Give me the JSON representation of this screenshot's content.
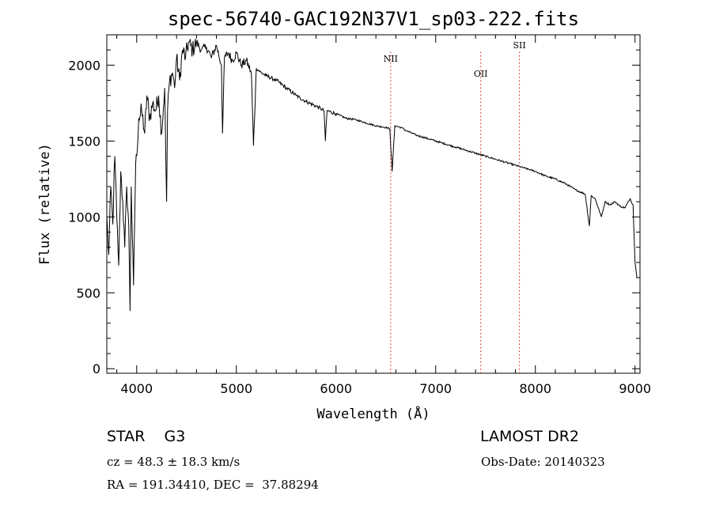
{
  "chart_data": {
    "type": "line",
    "title": "spec-56740-GAC192N37V1_sp03-222.fits",
    "xlabel": "Wavelength (Å)",
    "ylabel": "Flux (relative)",
    "xlim": [
      3700,
      9050
    ],
    "ylim": [
      -30,
      2200
    ],
    "xticks": [
      4000,
      5000,
      6000,
      7000,
      8000,
      9000
    ],
    "yticks": [
      0,
      500,
      1000,
      1500,
      2000
    ],
    "series": [
      {
        "name": "spectrum",
        "x": [
          3700,
          3720,
          3740,
          3760,
          3780,
          3800,
          3820,
          3840,
          3860,
          3880,
          3900,
          3920,
          3933,
          3945,
          3968,
          3990,
          4000,
          4020,
          4050,
          4080,
          4102,
          4130,
          4160,
          4190,
          4220,
          4250,
          4280,
          4300,
          4310,
          4330,
          4360,
          4380,
          4400,
          4430,
          4460,
          4490,
          4520,
          4560,
          4600,
          4650,
          4700,
          4750,
          4800,
          4850,
          4861,
          4880,
          4920,
          4960,
          5000,
          5050,
          5100,
          5150,
          5172,
          5200,
          5250,
          5300,
          5400,
          5500,
          5600,
          5700,
          5800,
          5880,
          5893,
          5910,
          6000,
          6100,
          6200,
          6300,
          6400,
          6500,
          6540,
          6563,
          6590,
          6650,
          6700,
          6800,
          6900,
          7000,
          7100,
          7200,
          7300,
          7400,
          7500,
          7600,
          7700,
          7800,
          7900,
          8000,
          8100,
          8200,
          8300,
          8400,
          8500,
          8542,
          8560,
          8600,
          8662,
          8700,
          8750,
          8800,
          8850,
          8900,
          8950,
          8980,
          9000,
          9020
        ],
        "values": [
          1000,
          750,
          1200,
          950,
          1400,
          1000,
          680,
          1300,
          1100,
          800,
          1200,
          950,
          380,
          1200,
          550,
          1350,
          1400,
          1650,
          1700,
          1550,
          1800,
          1650,
          1750,
          1700,
          1800,
          1550,
          1850,
          1100,
          1700,
          1900,
          1950,
          1850,
          2050,
          1900,
          2100,
          2050,
          2150,
          2100,
          2150,
          2100,
          2120,
          2050,
          2130,
          2000,
          1550,
          2050,
          2080,
          2030,
          2080,
          2000,
          2030,
          1950,
          1470,
          1980,
          1950,
          1930,
          1900,
          1850,
          1800,
          1760,
          1730,
          1700,
          1500,
          1700,
          1680,
          1650,
          1640,
          1620,
          1600,
          1590,
          1580,
          1300,
          1600,
          1590,
          1570,
          1540,
          1520,
          1500,
          1480,
          1460,
          1440,
          1420,
          1400,
          1380,
          1360,
          1340,
          1320,
          1300,
          1270,
          1250,
          1220,
          1180,
          1150,
          940,
          1140,
          1120,
          1000,
          1100,
          1080,
          1100,
          1070,
          1060,
          1120,
          1080,
          700,
          600
        ]
      }
    ],
    "lines": [
      {
        "label": "NII",
        "x": 6548
      },
      {
        "label": "OII",
        "x": 7452
      },
      {
        "label": "SII",
        "x": 7840
      }
    ]
  },
  "footer": {
    "object": "STAR    G3",
    "redshift": "cz = 48.3 ± 18.3 km/s",
    "coords": "RA = 191.34410, DEC =  37.88294",
    "survey": "LAMOST DR2",
    "obs_date": "Obs-Date: 20140323"
  }
}
